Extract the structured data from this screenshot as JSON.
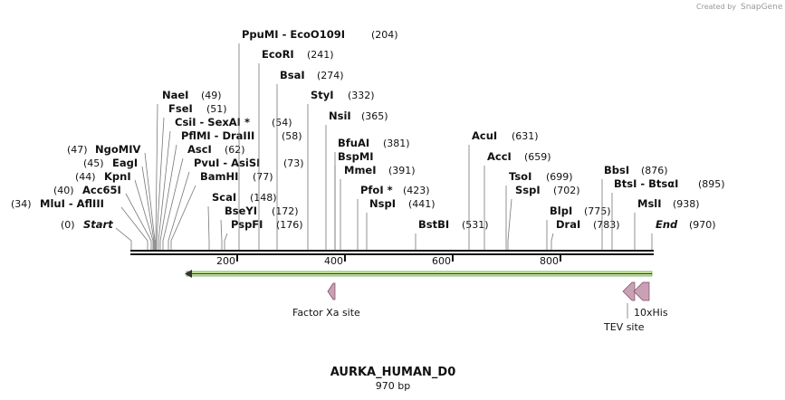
{
  "header": {
    "credit": "Created by",
    "brand": "SnapGene"
  },
  "sites": [
    {
      "name": "Start",
      "position": "(0)"
    },
    {
      "name": "MluI  - AflIII",
      "position": "(34)"
    },
    {
      "name": "Acc65I",
      "position": "(40)"
    },
    {
      "name": "KpnI",
      "position": "(44)"
    },
    {
      "name": "EagI",
      "position": "(45)"
    },
    {
      "name": "NgoMIV",
      "position": "(47)"
    },
    {
      "name": "NaeI",
      "position": "(49)"
    },
    {
      "name": "FseI",
      "position": "(51)"
    },
    {
      "name": "CsiI  - SexAI *",
      "position": "(54)"
    },
    {
      "name": "PflMI  - DraIII",
      "position": "(58)"
    },
    {
      "name": "AscI",
      "position": "(62)"
    },
    {
      "name": "PvuI  - AsiSI",
      "position": "(73)"
    },
    {
      "name": "BamHI",
      "position": "(77)"
    },
    {
      "name": "ScaI",
      "position": "(148)"
    },
    {
      "name": "BseYI",
      "position": "(172)"
    },
    {
      "name": "PspFI",
      "position": "(176)"
    },
    {
      "name": "PpuMI  - EcoO109I",
      "position": "(204)"
    },
    {
      "name": "EcoRI",
      "position": "(241)"
    },
    {
      "name": "BsaI",
      "position": "(274)"
    },
    {
      "name": "StyI",
      "position": "(332)"
    },
    {
      "name": "NsiI",
      "position": "(365)"
    },
    {
      "name": "BfuAI",
      "position": "(381)"
    },
    {
      "name": "BspMI"
    },
    {
      "name": "MmeI",
      "position": "(391)"
    },
    {
      "name": "PfoI *",
      "position": "(423)"
    },
    {
      "name": "NspI",
      "position": "(441)"
    },
    {
      "name": "BstBI",
      "position": "(531)"
    },
    {
      "name": "AcuI",
      "position": "(631)"
    },
    {
      "name": "AccI",
      "position": "(659)"
    },
    {
      "name": "TsoI",
      "position": "(699)"
    },
    {
      "name": "SspI",
      "position": "(702)"
    },
    {
      "name": "BlpI",
      "position": "(775)"
    },
    {
      "name": "DraI",
      "position": "(783)"
    },
    {
      "name": "BbsI",
      "position": "(876)"
    },
    {
      "name": "BtsI  - BtsαI",
      "position": "(895)"
    },
    {
      "name": "MslI",
      "position": "(938)"
    },
    {
      "name": "End",
      "position": "(970)"
    }
  ],
  "ruler": [
    200,
    400,
    600,
    800
  ],
  "features": [
    "Factor Xa site",
    "10xHis",
    "TEV site"
  ],
  "footer": {
    "title": "AURKA_HUMAN_D0",
    "length": "970 bp"
  }
}
